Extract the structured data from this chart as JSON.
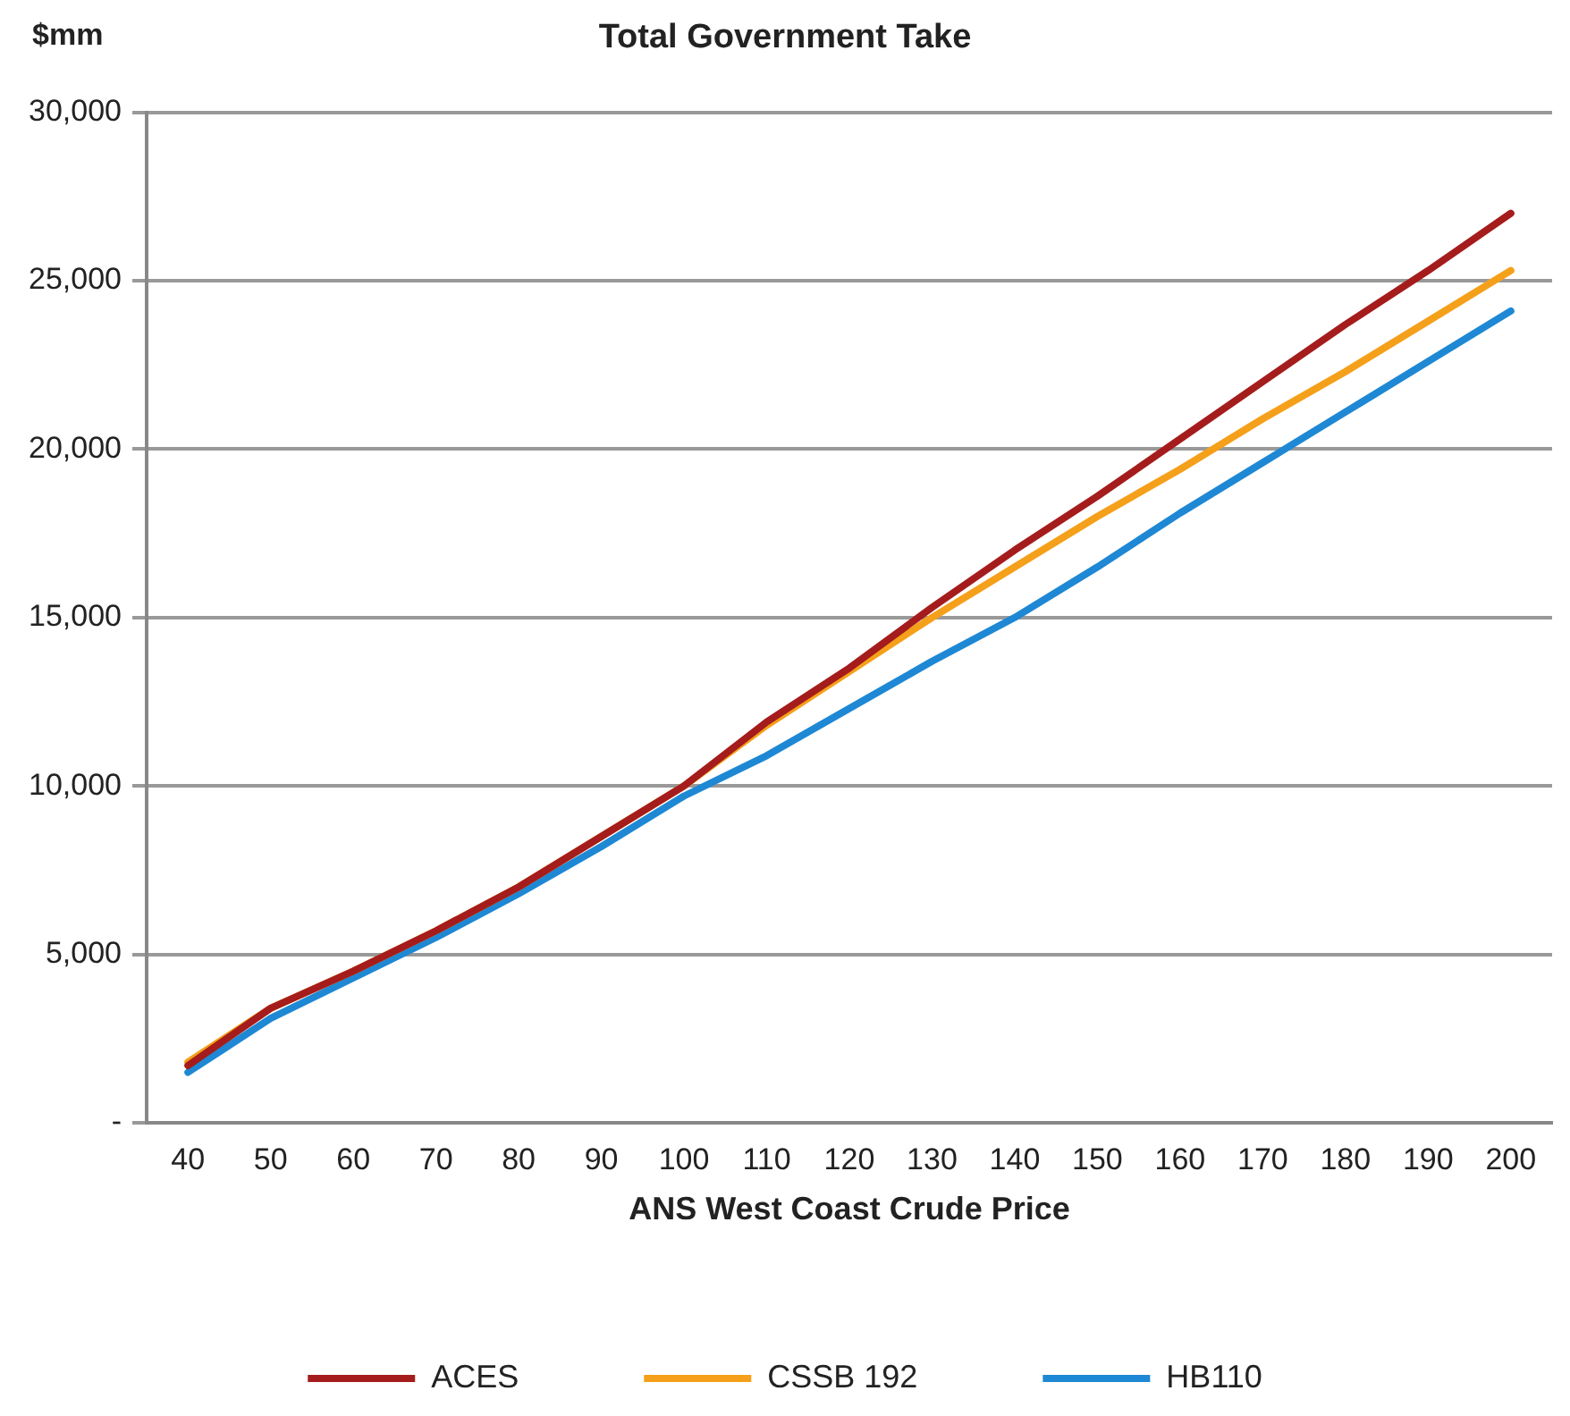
{
  "chart_data": {
    "type": "line",
    "title": "Total Government Take",
    "xlabel": "ANS West Coast Crude Price",
    "ylabel": "$mm",
    "categories": [
      "40",
      "50",
      "60",
      "70",
      "80",
      "90",
      "100",
      "110",
      "120",
      "130",
      "140",
      "150",
      "160",
      "170",
      "180",
      "190",
      "200"
    ],
    "series": [
      {
        "name": "ACES",
        "color": "#a51c1c",
        "values": [
          1700,
          3400,
          4500,
          5700,
          7000,
          8500,
          10000,
          11900,
          13500,
          15300,
          17000,
          18600,
          20300,
          22000,
          23700,
          25300,
          27000
        ]
      },
      {
        "name": "CSSB 192",
        "color": "#f5a01a",
        "values": [
          1800,
          3400,
          4500,
          5700,
          7000,
          8500,
          10000,
          11800,
          13400,
          15000,
          16500,
          18000,
          19400,
          20900,
          22300,
          23800,
          25300
        ]
      },
      {
        "name": "HB110",
        "color": "#1e88d4",
        "values": [
          1500,
          3100,
          4300,
          5500,
          6800,
          8200,
          9700,
          10900,
          12300,
          13700,
          15000,
          16500,
          18100,
          19600,
          21100,
          22600,
          24100
        ]
      }
    ],
    "ylim": [
      0,
      30000
    ],
    "yticks": [
      {
        "value": 0,
        "label": "-"
      },
      {
        "value": 5000,
        "label": "5,000"
      },
      {
        "value": 10000,
        "label": "10,000"
      },
      {
        "value": 15000,
        "label": "15,000"
      },
      {
        "value": 20000,
        "label": "20,000"
      },
      {
        "value": 25000,
        "label": "25,000"
      },
      {
        "value": 30000,
        "label": "30,000"
      }
    ],
    "grid": "y",
    "legend": "bottom",
    "marker": "none",
    "line_style": "solid"
  }
}
